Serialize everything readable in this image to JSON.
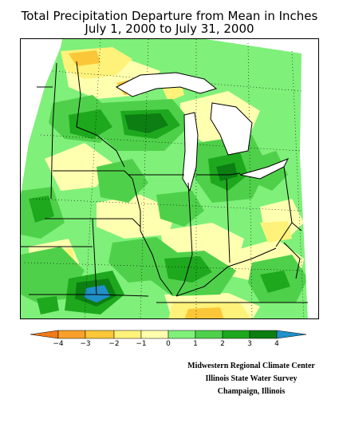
{
  "header": {
    "title_line1": "Total Precipitation Departure from Mean in Inches",
    "title_line2": "July 1, 2000 to July 31, 2000"
  },
  "legend": {
    "ticks": [
      "−4",
      "−3",
      "−2",
      "−1",
      "0",
      "1",
      "2",
      "3",
      "4"
    ],
    "colors": {
      "lt_-4": "#f07a18",
      "-4_-3": "#f8a02a",
      "-3_-2": "#fbc738",
      "-2_-1": "#fff27a",
      "-1_0": "#ffffb0",
      "0_1": "#7ff07a",
      "1_2": "#4fd04a",
      "2_3": "#1ea81e",
      "3_4": "#0c7e12",
      "gt_4": "#2090c8"
    }
  },
  "credits": {
    "line1": "Midwestern Regional Climate Center",
    "line2": "Illinois State Water Survey",
    "line3": "Champaign, Illinois"
  }
}
